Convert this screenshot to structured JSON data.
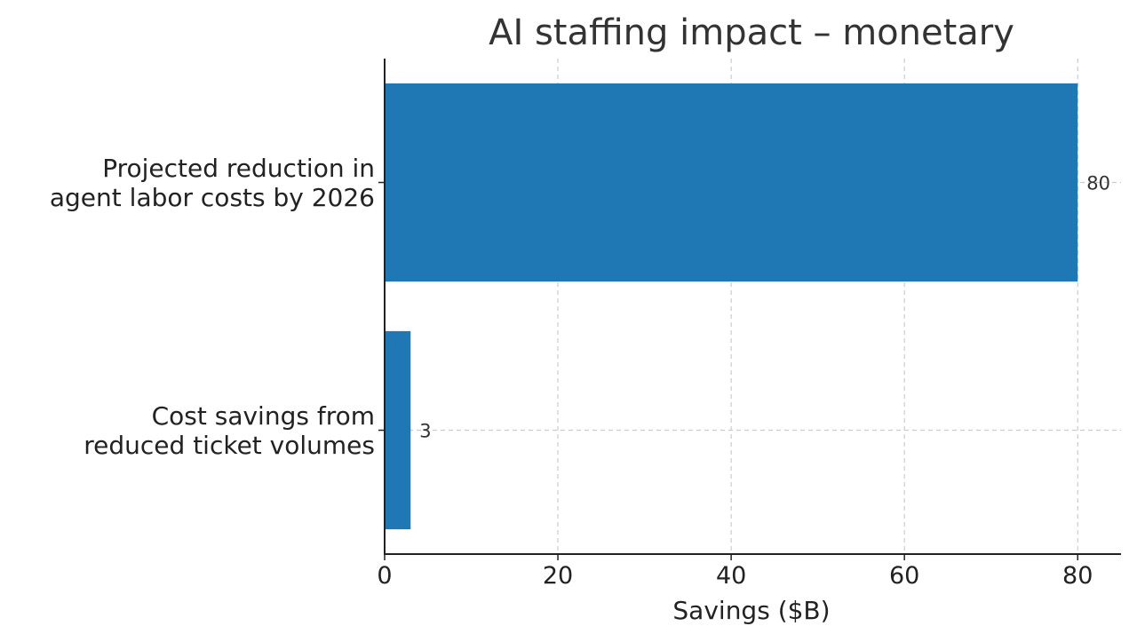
{
  "chart_data": {
    "type": "bar",
    "orientation": "horizontal",
    "title": "AI staffing impact – monetary",
    "xlabel": "Savings ($B)",
    "ylabel": "",
    "categories": [
      [
        "Projected reduction in",
        "agent labor costs by 2026"
      ],
      [
        "Cost savings from",
        "reduced ticket volumes"
      ]
    ],
    "values": [
      80,
      3
    ],
    "value_labels": [
      "80",
      "3"
    ],
    "xlim": [
      0,
      85
    ],
    "xticks": [
      0,
      20,
      40,
      60,
      80
    ],
    "xtick_labels": [
      "0",
      "20",
      "40",
      "60",
      "80"
    ],
    "grid": true,
    "bar_color": "#1f77b4"
  }
}
